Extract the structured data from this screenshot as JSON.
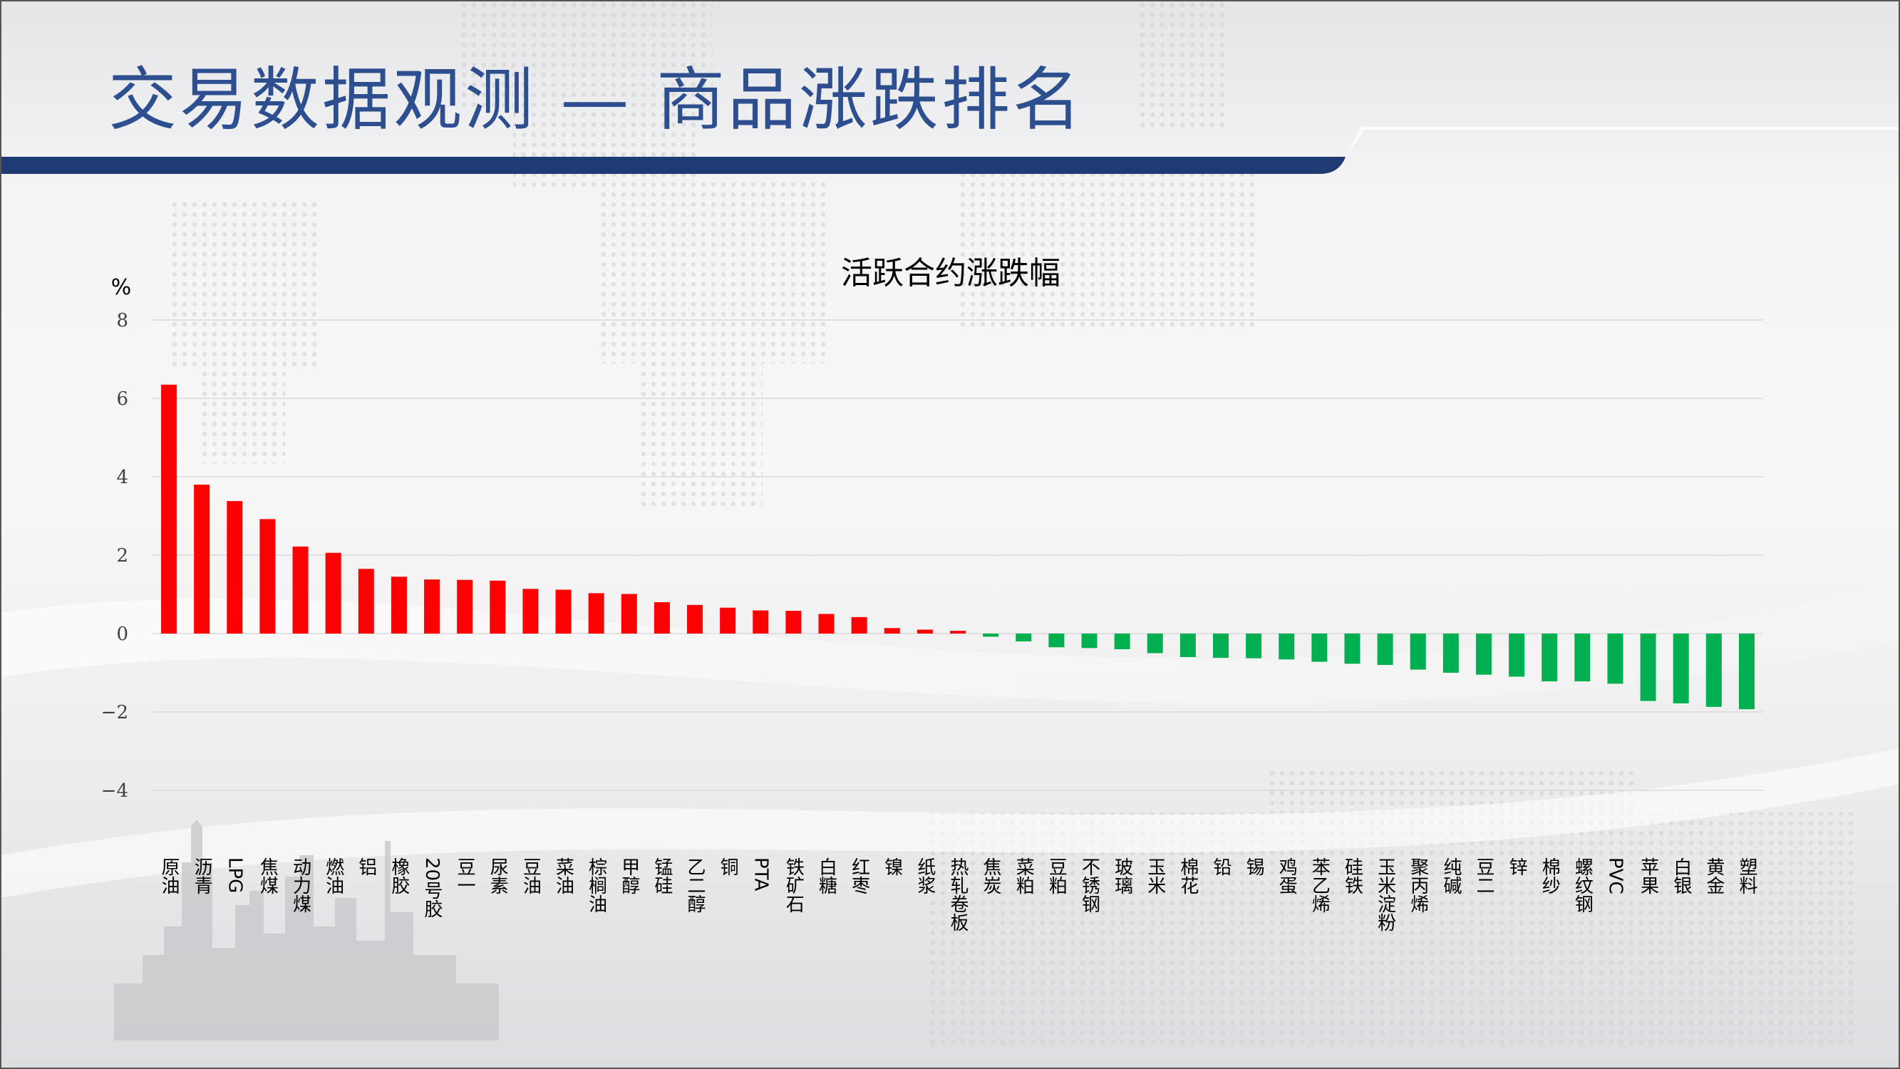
{
  "page": {
    "title": "交易数据观测 — 商品涨跌排名",
    "colors": {
      "title": "#2e4f8f",
      "header_band": "#1f3b73",
      "positive": "#ff0000",
      "negative": "#00b050"
    }
  },
  "chart_data": {
    "type": "bar",
    "title": "活跃合约涨跌幅",
    "ylabel": "%",
    "xlabel": "",
    "ylim": [
      -4,
      8
    ],
    "yticks": [
      "8",
      "6",
      "4",
      "2",
      "0",
      "−2",
      "−4"
    ],
    "grid": true,
    "categories": [
      "原油",
      "沥青",
      "LPG",
      "焦煤",
      "动力煤",
      "燃油",
      "铝",
      "橡胶",
      "20号胶",
      "豆一",
      "尿素",
      "豆油",
      "菜油",
      "棕榈油",
      "甲醇",
      "锰硅",
      "乙二醇",
      "铜",
      "PTA",
      "铁矿石",
      "白糖",
      "红枣",
      "镍",
      "纸浆",
      "热轧卷板",
      "焦炭",
      "菜粕",
      "豆粕",
      "不锈钢",
      "玻璃",
      "玉米",
      "棉花",
      "铅",
      "锡",
      "鸡蛋",
      "苯乙烯",
      "硅铁",
      "玉米淀粉",
      "聚丙烯",
      "纯碱",
      "豆二",
      "锌",
      "棉纱",
      "螺纹钢",
      "PVC",
      "苹果",
      "白银",
      "黄金",
      "塑料"
    ],
    "values": [
      6.35,
      3.8,
      3.38,
      2.92,
      2.22,
      2.06,
      1.65,
      1.45,
      1.38,
      1.37,
      1.35,
      1.14,
      1.12,
      1.03,
      1.01,
      0.8,
      0.73,
      0.66,
      0.59,
      0.58,
      0.5,
      0.42,
      0.14,
      0.1,
      0.07,
      -0.08,
      -0.2,
      -0.35,
      -0.37,
      -0.4,
      -0.5,
      -0.6,
      -0.62,
      -0.63,
      -0.66,
      -0.72,
      -0.77,
      -0.8,
      -0.92,
      -1.0,
      -1.05,
      -1.1,
      -1.22,
      -1.22,
      -1.28,
      -1.72,
      -1.78,
      -1.87,
      -1.93
    ]
  }
}
